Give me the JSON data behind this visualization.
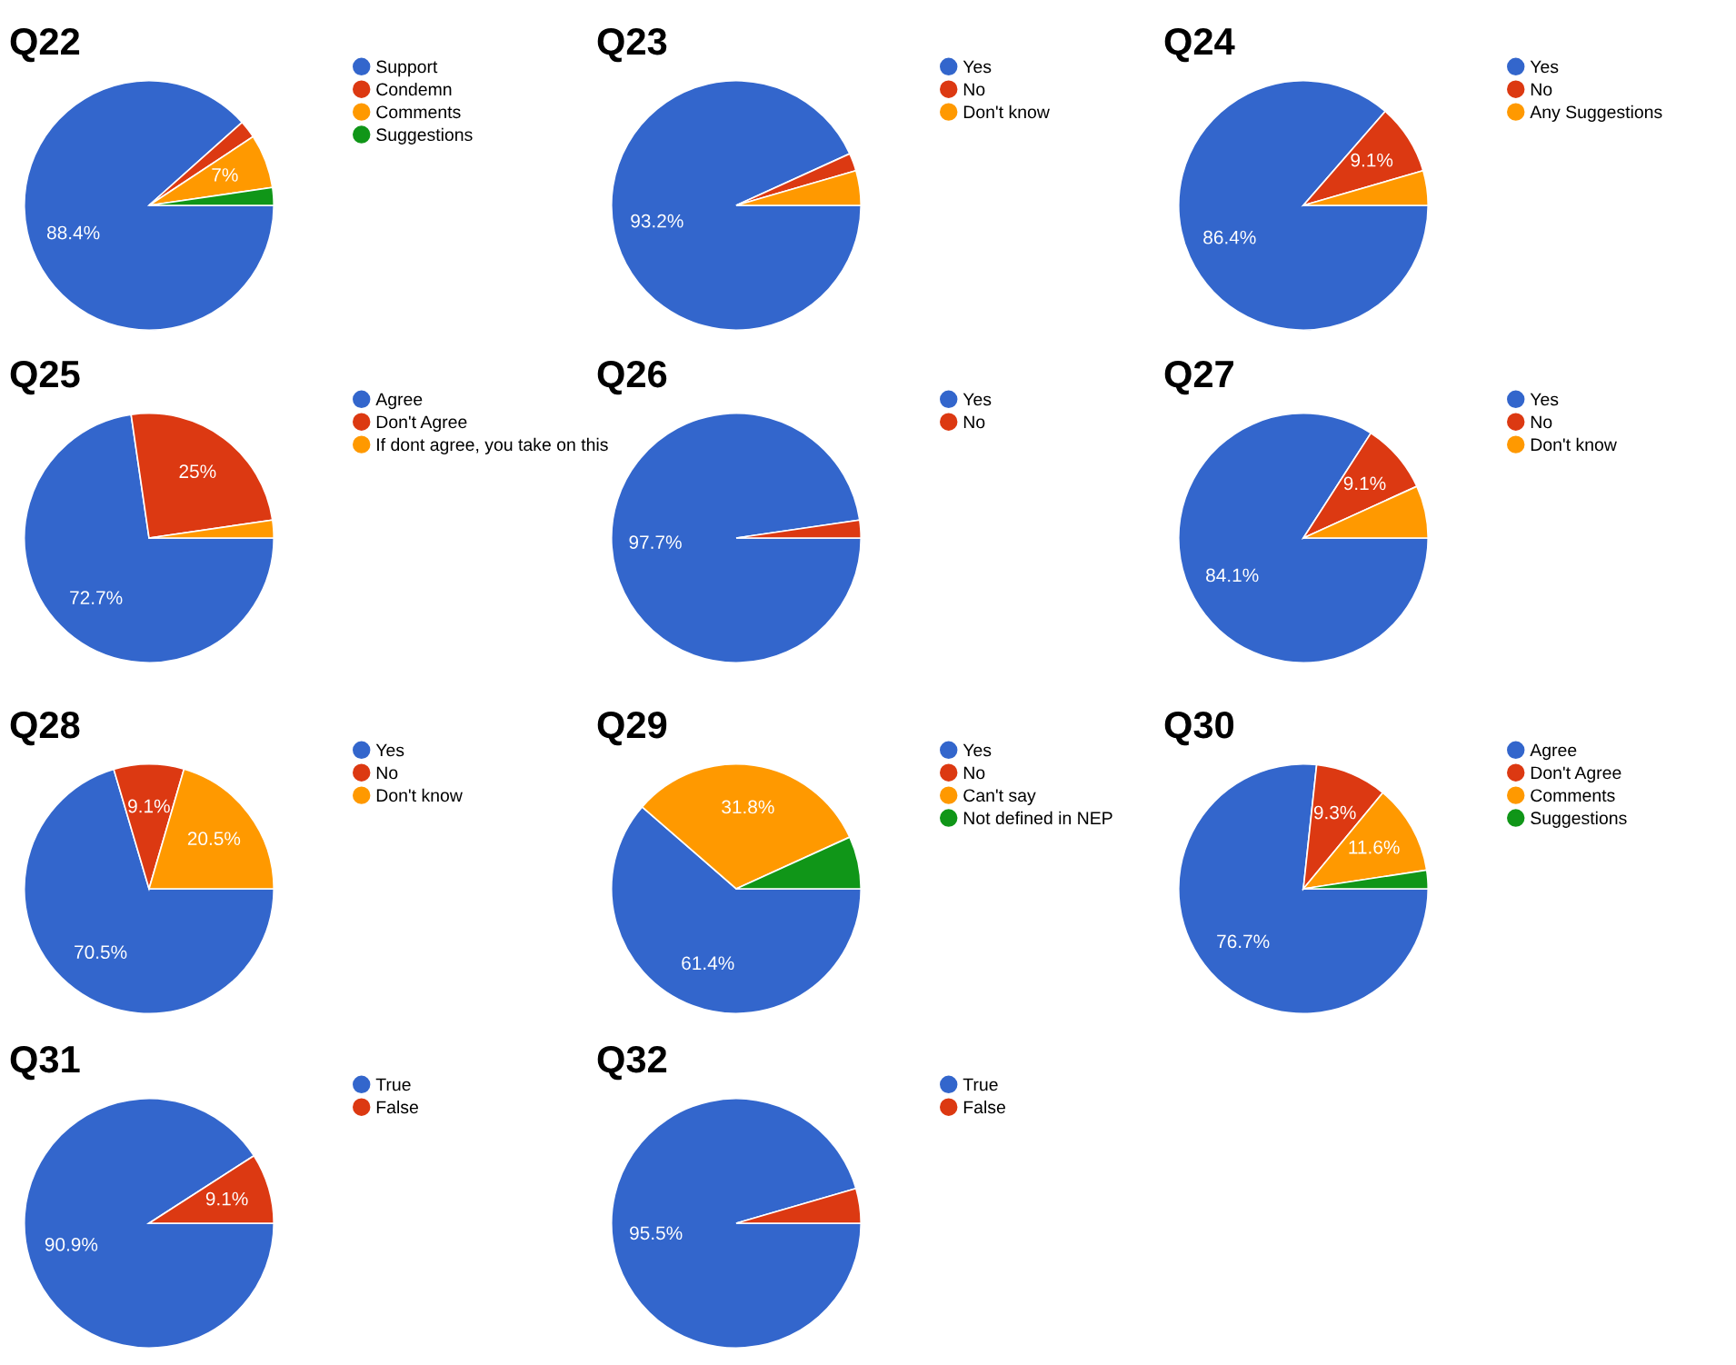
{
  "chart_data": [
    {
      "type": "pie",
      "title": "Q22",
      "categories": [
        "Support",
        "Condemn",
        "Comments",
        "Suggestions"
      ],
      "values": [
        88.4,
        2.3,
        7,
        2.3
      ],
      "colors": [
        "#3366cc",
        "#dc3912",
        "#ff9900",
        "#109618"
      ],
      "value_labels": [
        "88.4%",
        null,
        "7%",
        null
      ],
      "legend": "right"
    },
    {
      "type": "pie",
      "title": "Q23",
      "categories": [
        "Yes",
        "No",
        "Don't know"
      ],
      "values": [
        93.2,
        2.3,
        4.5
      ],
      "colors": [
        "#3366cc",
        "#dc3912",
        "#ff9900"
      ],
      "value_labels": [
        "93.2%",
        null,
        null
      ],
      "legend": "right"
    },
    {
      "type": "pie",
      "title": "Q24",
      "categories": [
        "Yes",
        "No",
        "Any Suggestions"
      ],
      "values": [
        86.4,
        9.1,
        4.5
      ],
      "colors": [
        "#3366cc",
        "#dc3912",
        "#ff9900"
      ],
      "value_labels": [
        "86.4%",
        "9.1%",
        null
      ],
      "legend": "right"
    },
    {
      "type": "pie",
      "title": "Q25",
      "categories": [
        "Agree",
        "Don't Agree",
        "If dont agree, you take on this"
      ],
      "values": [
        72.7,
        25,
        2.3
      ],
      "colors": [
        "#3366cc",
        "#dc3912",
        "#ff9900"
      ],
      "value_labels": [
        "72.7%",
        "25%",
        null
      ],
      "legend": "right"
    },
    {
      "type": "pie",
      "title": "Q26",
      "categories": [
        "Yes",
        "No"
      ],
      "values": [
        97.7,
        2.3
      ],
      "colors": [
        "#3366cc",
        "#dc3912"
      ],
      "value_labels": [
        "97.7%",
        null
      ],
      "legend": "right"
    },
    {
      "type": "pie",
      "title": "Q27",
      "categories": [
        "Yes",
        "No",
        "Don't know"
      ],
      "values": [
        84.1,
        9.1,
        6.8
      ],
      "colors": [
        "#3366cc",
        "#dc3912",
        "#ff9900"
      ],
      "value_labels": [
        "84.1%",
        "9.1%",
        null
      ],
      "legend": "right"
    },
    {
      "type": "pie",
      "title": "Q28",
      "categories": [
        "Yes",
        "No",
        "Don't know"
      ],
      "values": [
        70.5,
        9.1,
        20.5
      ],
      "colors": [
        "#3366cc",
        "#dc3912",
        "#ff9900"
      ],
      "value_labels": [
        "70.5%",
        "9.1%",
        "20.5%"
      ],
      "legend": "right"
    },
    {
      "type": "pie",
      "title": "Q29",
      "categories": [
        "Yes",
        "No",
        "Can't say",
        "Not defined in NEP"
      ],
      "values": [
        61.4,
        0,
        31.8,
        6.8
      ],
      "colors": [
        "#3366cc",
        "#dc3912",
        "#ff9900",
        "#109618"
      ],
      "value_labels": [
        "61.4%",
        null,
        "31.8%",
        null
      ],
      "legend": "right"
    },
    {
      "type": "pie",
      "title": "Q30",
      "categories": [
        "Agree",
        "Don't Agree",
        "Comments",
        "Suggestions"
      ],
      "values": [
        76.7,
        9.3,
        11.6,
        2.4
      ],
      "colors": [
        "#3366cc",
        "#dc3912",
        "#ff9900",
        "#109618"
      ],
      "value_labels": [
        "76.7%",
        "9.3%",
        "11.6%",
        null
      ],
      "legend": "right"
    },
    {
      "type": "pie",
      "title": "Q31",
      "categories": [
        "True",
        "False"
      ],
      "values": [
        90.9,
        9.1
      ],
      "colors": [
        "#3366cc",
        "#dc3912"
      ],
      "value_labels": [
        "90.9%",
        "9.1%"
      ],
      "legend": "right"
    },
    {
      "type": "pie",
      "title": "Q32",
      "categories": [
        "True",
        "False"
      ],
      "values": [
        95.5,
        4.5
      ],
      "colors": [
        "#3366cc",
        "#dc3912"
      ],
      "value_labels": [
        "95.5%",
        null
      ],
      "legend": "right"
    }
  ]
}
